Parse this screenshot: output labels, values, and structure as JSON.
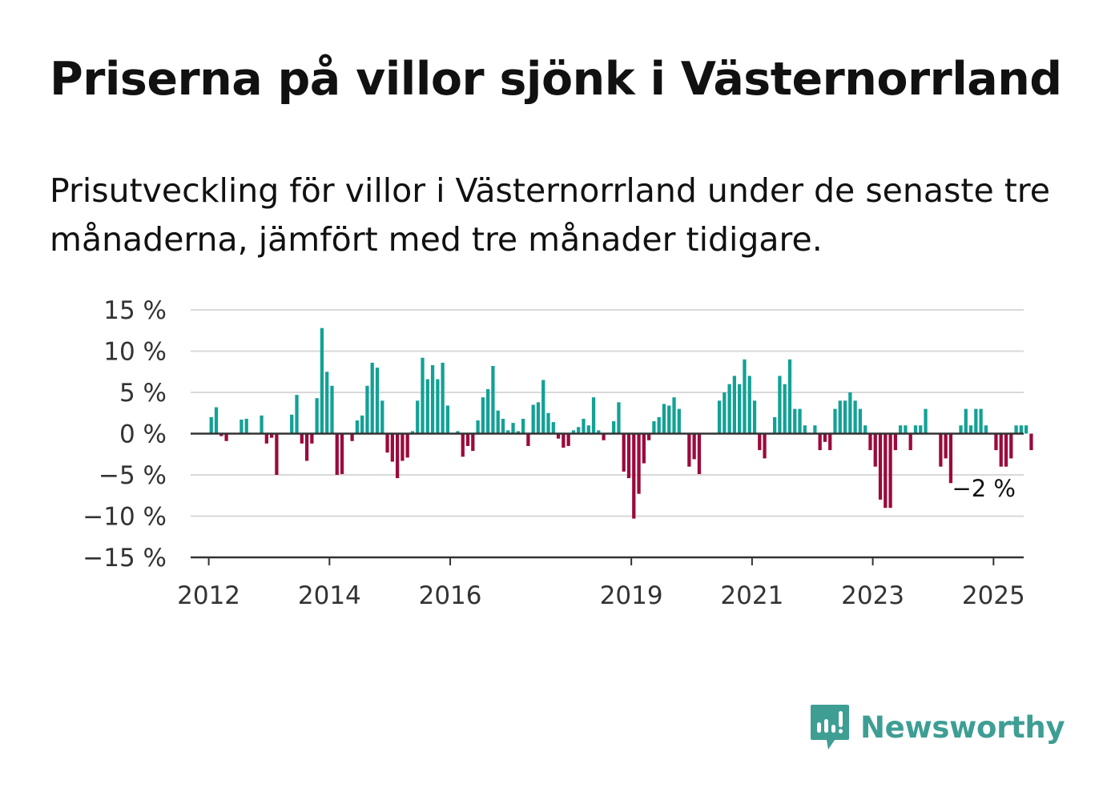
{
  "header": {
    "title": "Priserna på villor sjönk i Västernorrland",
    "subtitle": "Prisutveckling för villor i Västernorrland under de senaste tre månaderna, jämfört med tre månader tidigare."
  },
  "brand": {
    "name": "Newsworthy",
    "icon": "newsworthy-logo-icon",
    "color": "#3e9e94"
  },
  "colors": {
    "positive": "#13a196",
    "negative": "#9b0a3c",
    "grid": "#d9d9d9",
    "axis": "#333333"
  },
  "chart_data": {
    "type": "bar",
    "title": "",
    "xlabel": "",
    "ylabel": "",
    "ylim": [
      -15,
      15
    ],
    "yticks": [
      15,
      10,
      5,
      0,
      -5,
      -10,
      -15
    ],
    "ytick_labels": [
      "15 %",
      "10 %",
      "5 %",
      "0 %",
      "−5 %",
      "−10 %",
      "−15 %"
    ],
    "xlim": [
      2011.7,
      2025.5
    ],
    "xticks": [
      2012,
      2014,
      2016,
      2019,
      2021,
      2023,
      2025
    ],
    "xtick_labels": [
      "2012",
      "2014",
      "2016",
      "2019",
      "2021",
      "2023",
      "2025"
    ],
    "grid": true,
    "end_label": "−2 %",
    "series": [
      {
        "start": 2012.0,
        "step_months": 1,
        "values": [
          2,
          3.2,
          -0.3,
          -0.9,
          0,
          0,
          1.7,
          1.8,
          0,
          0,
          2.2,
          -1.2,
          -0.5,
          -5.0,
          0,
          0,
          2.3,
          4.7,
          -1.2,
          -3.3,
          -1.2,
          4.3,
          12.8,
          7.5,
          5.8,
          -5.0,
          -4.9,
          0,
          -0.9,
          1.6,
          2.2,
          5.8,
          8.6,
          8.0,
          4.0,
          -2.3,
          -3.4,
          -5.4,
          -3.3,
          -2.9,
          0.3,
          4.0,
          9.2,
          6.6,
          8.3,
          6.6,
          8.6,
          3.4,
          0,
          0.3,
          -2.8,
          -1.5,
          -2.1,
          1.6,
          4.4,
          5.4,
          8.2,
          2.8,
          1.8,
          0.4,
          1.3,
          0.3,
          1.8,
          -1.5,
          3.5,
          3.8,
          6.5,
          2.5,
          1.4,
          -0.6,
          -1.7,
          -1.5,
          0.4,
          0.8,
          1.8,
          1.0,
          4.4,
          0.4,
          -0.8,
          0,
          1.5,
          3.8,
          -4.6,
          -5.4,
          -10.3,
          -7.3,
          -3.6,
          -0.8,
          1.5,
          2.0,
          3.6,
          3.4,
          4.4,
          3.0,
          0,
          -4.0,
          -3.1,
          -4.9,
          0,
          0,
          0,
          4.0,
          5.0,
          6.0,
          7.0,
          6.0,
          9.0,
          7.0,
          4.0,
          -2.0,
          -3.0,
          0,
          2.0,
          7.0,
          6.0,
          9.0,
          3.0,
          3.0,
          1.0,
          0,
          1.0,
          -2.0,
          -1.0,
          -2.0,
          3.0,
          4.0,
          4.0,
          5.0,
          4.0,
          3.0,
          1.0,
          -2.0,
          -4.0,
          -8.0,
          -9.0,
          -9.0,
          -2.0,
          1.0,
          1.0,
          -2.0,
          1.0,
          1.0,
          3.0,
          0,
          0,
          -4.0,
          -3.0,
          -6.0,
          0,
          1.0,
          3.0,
          1.0,
          3.0,
          3.0,
          1.0,
          0,
          -2.0,
          -4.0,
          -4.0,
          -3.0,
          1.0,
          1.0,
          1.0,
          -2.0
        ]
      }
    ]
  }
}
